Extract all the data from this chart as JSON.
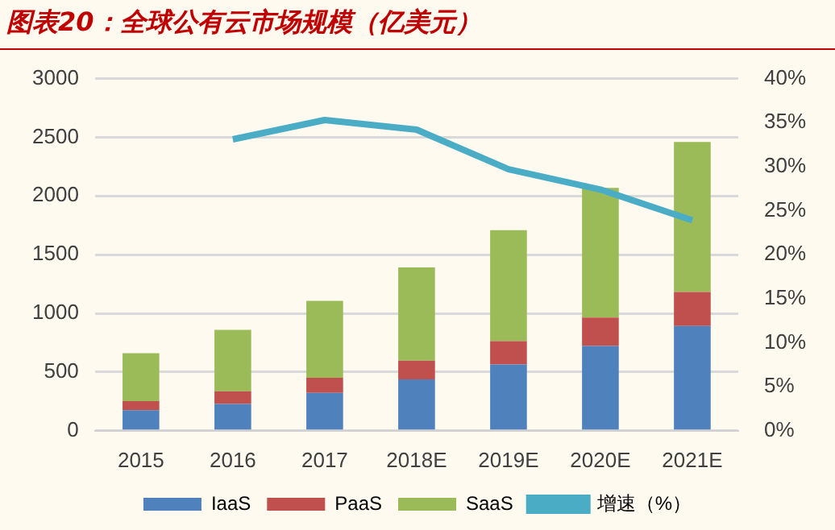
{
  "chart_data": {
    "type": "bar",
    "title": "图表20：全球公有云市场规模（亿美元）",
    "stacked": true,
    "categories": [
      "2015",
      "2016",
      "2017",
      "2018E",
      "2019E",
      "2020E",
      "2021E"
    ],
    "series": [
      {
        "name": "IaaS",
        "color": "#4f81bd",
        "values": [
          176,
          228,
          323,
          437,
          565,
          722,
          893
        ]
      },
      {
        "name": "PaaS",
        "color": "#c0504d",
        "values": [
          76,
          109,
          128,
          161,
          199,
          242,
          289
        ]
      },
      {
        "name": "SaaS",
        "color": "#9bbb59",
        "values": [
          408,
          522,
          655,
          793,
          945,
          1106,
          1278
        ]
      },
      {
        "name": "增速（%）",
        "type": "line",
        "axis": "y2",
        "color": "#4bacc6",
        "values": [
          null,
          33.1,
          35.3,
          34.2,
          29.7,
          27.4,
          23.9
        ]
      }
    ],
    "ylim": [
      0,
      3000
    ],
    "yticks": [
      0,
      500,
      1000,
      1500,
      2000,
      2500,
      3000
    ],
    "y2lim": [
      0,
      40
    ],
    "y2ticks": [
      {
        "value": 0,
        "label": "0%"
      },
      {
        "value": 5,
        "label": "5%"
      },
      {
        "value": 10,
        "label": "10%"
      },
      {
        "value": 15,
        "label": "15%"
      },
      {
        "value": 20,
        "label": "20%"
      },
      {
        "value": 25,
        "label": "25%"
      },
      {
        "value": 30,
        "label": "30%"
      },
      {
        "value": 35,
        "label": "35%"
      },
      {
        "value": 40,
        "label": "40%"
      }
    ],
    "grid": "y",
    "legend": "bottom",
    "marker": "none"
  }
}
